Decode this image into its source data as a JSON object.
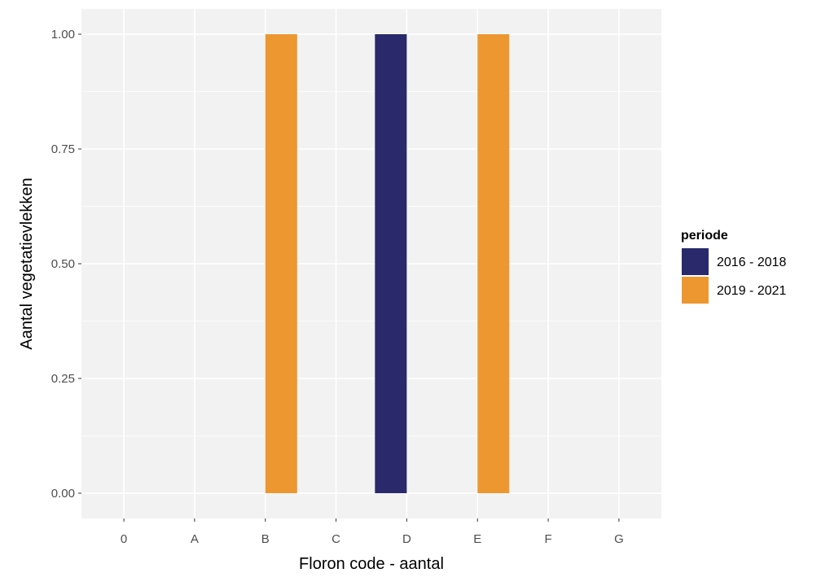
{
  "chart_data": {
    "type": "bar",
    "position": "dodge",
    "categories": [
      "0",
      "A",
      "B",
      "C",
      "D",
      "E",
      "F",
      "G"
    ],
    "series": [
      {
        "name": "2016 - 2018",
        "color": "#29296b",
        "values": [
          0,
          0,
          0,
          0,
          1,
          0,
          0,
          0
        ]
      },
      {
        "name": "2019 - 2021",
        "color": "#ed9730",
        "values": [
          0,
          0,
          1,
          0,
          0,
          1,
          0,
          0
        ]
      }
    ],
    "xlabel": "Floron code - aantal",
    "ylabel": "Aantal vegetatievlekken",
    "ylim": [
      -0.055,
      1.055
    ],
    "yticks": [
      "0.00",
      "0.25",
      "0.50",
      "0.75",
      "1.00"
    ],
    "grid": true,
    "legend": {
      "title": "periode",
      "position": "right"
    },
    "panel_color": "#f2f2f2",
    "grid_color": "#ffffff"
  }
}
